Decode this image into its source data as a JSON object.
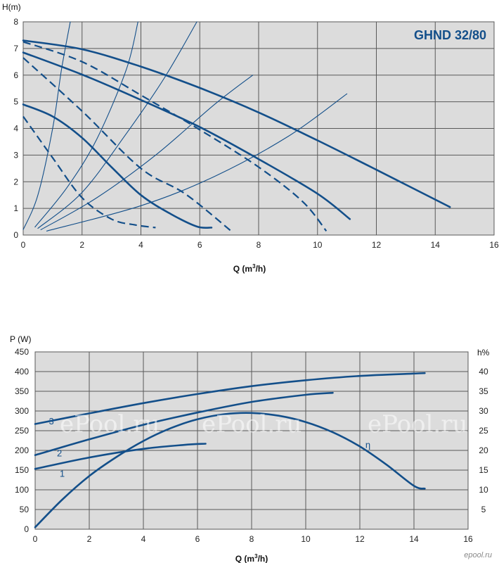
{
  "colors": {
    "curve": "#134f8a",
    "grid": "#595959",
    "plot_bg": "#dcdcdc",
    "title": "#134f8a"
  },
  "chart_data": [
    {
      "type": "line",
      "title": "GHND 32/80",
      "xlabel": "Q (m",
      "xlabel_sup": "3",
      "xlabel_tail": "/h)",
      "ylabel": "H(m)",
      "xlim": [
        0,
        16
      ],
      "ylim": [
        0,
        8
      ],
      "xticks": [
        0,
        2,
        4,
        6,
        8,
        10,
        12,
        14,
        16
      ],
      "yticks": [
        0,
        1,
        2,
        3,
        4,
        5,
        6,
        7,
        8
      ],
      "grid": true,
      "series": [
        {
          "style": "solid",
          "width": 2.6,
          "points": [
            [
              0,
              7.3
            ],
            [
              2,
              6.97
            ],
            [
              4,
              6.32
            ],
            [
              6,
              5.52
            ],
            [
              8,
              4.6
            ],
            [
              10,
              3.55
            ],
            [
              12,
              2.45
            ],
            [
              14.5,
              1.05
            ]
          ]
        },
        {
          "style": "solid",
          "width": 2.6,
          "points": [
            [
              0,
              6.85
            ],
            [
              2,
              6.02
            ],
            [
              4,
              5.07
            ],
            [
              6,
              4.05
            ],
            [
              8,
              2.85
            ],
            [
              10,
              1.55
            ],
            [
              11.1,
              0.6
            ]
          ]
        },
        {
          "style": "solid",
          "width": 2.6,
          "points": [
            [
              0,
              4.9
            ],
            [
              1,
              4.45
            ],
            [
              2,
              3.65
            ],
            [
              3,
              2.55
            ],
            [
              4,
              1.5
            ],
            [
              5,
              0.8
            ],
            [
              5.9,
              0.32
            ],
            [
              6.4,
              0.28
            ]
          ]
        },
        {
          "style": "dashed",
          "width": 2.2,
          "points": [
            [
              0,
              7.25
            ],
            [
              2,
              6.5
            ],
            [
              4,
              5.25
            ],
            [
              6,
              3.95
            ],
            [
              8,
              2.55
            ],
            [
              9.5,
              1.25
            ],
            [
              10.3,
              0.15
            ]
          ]
        },
        {
          "style": "dashed",
          "width": 2.2,
          "points": [
            [
              0,
              6.65
            ],
            [
              2,
              4.65
            ],
            [
              4,
              2.5
            ],
            [
              5.5,
              1.55
            ],
            [
              7.1,
              0.12
            ]
          ]
        },
        {
          "style": "dashed",
          "width": 2.2,
          "points": [
            [
              0,
              4.45
            ],
            [
              1,
              2.9
            ],
            [
              2,
              1.4
            ],
            [
              3,
              0.6
            ],
            [
              3.8,
              0.38
            ],
            [
              4.5,
              0.28
            ]
          ]
        },
        {
          "style": "thin",
          "width": 1.1,
          "points": [
            [
              0,
              0.2
            ],
            [
              0.5,
              1.5
            ],
            [
              1.0,
              4.0
            ],
            [
              1.3,
              6.2
            ],
            [
              1.6,
              8.0
            ]
          ]
        },
        {
          "style": "thin",
          "width": 1.1,
          "points": [
            [
              0.4,
              0.3
            ],
            [
              1.5,
              1.8
            ],
            [
              2.5,
              3.6
            ],
            [
              3.5,
              6.2
            ],
            [
              3.9,
              8.0
            ]
          ]
        },
        {
          "style": "thin",
          "width": 1.1,
          "points": [
            [
              0.5,
              0.25
            ],
            [
              2,
              1.6
            ],
            [
              3.5,
              3.8
            ],
            [
              4.8,
              5.9
            ],
            [
              5.9,
              8.0
            ]
          ]
        },
        {
          "style": "thin",
          "width": 1.1,
          "points": [
            [
              0.6,
              0.2
            ],
            [
              2.5,
              1.4
            ],
            [
              4.5,
              3.0
            ],
            [
              6.5,
              4.9
            ],
            [
              7.8,
              6.0
            ]
          ]
        },
        {
          "style": "thin",
          "width": 1.1,
          "points": [
            [
              0.8,
              0.15
            ],
            [
              4,
              1.1
            ],
            [
              6.5,
              2.2
            ],
            [
              9,
              3.7
            ],
            [
              11,
              5.3
            ]
          ]
        }
      ]
    },
    {
      "type": "line",
      "xlabel": "Q (m",
      "xlabel_sup": "3",
      "xlabel_tail": "/h)",
      "ylabel": "P (W)",
      "y2label": "h%",
      "xlim": [
        0,
        16
      ],
      "ylim": [
        0,
        450
      ],
      "y2lim": [
        0,
        45
      ],
      "xticks": [
        0,
        2,
        4,
        6,
        8,
        10,
        12,
        14,
        16
      ],
      "yticks": [
        0,
        50,
        100,
        150,
        200,
        250,
        300,
        350,
        400,
        450
      ],
      "y2ticks": [
        5,
        10,
        15,
        20,
        25,
        30,
        35,
        40
      ],
      "grid": true,
      "series": [
        {
          "name": "3",
          "points": [
            [
              0,
              267
            ],
            [
              2,
              294
            ],
            [
              4,
              320
            ],
            [
              6,
              343
            ],
            [
              8,
              363
            ],
            [
              10,
              378
            ],
            [
              12,
              389
            ],
            [
              14,
              395
            ],
            [
              14.4,
              396
            ]
          ]
        },
        {
          "name": "2",
          "points": [
            [
              0,
              188
            ],
            [
              2,
              228
            ],
            [
              4,
              265
            ],
            [
              6,
              296
            ],
            [
              8,
              323
            ],
            [
              10,
              341
            ],
            [
              11.0,
              346
            ]
          ]
        },
        {
          "name": "1",
          "points": [
            [
              0,
              153
            ],
            [
              2,
              182
            ],
            [
              4,
              204
            ],
            [
              5.5,
              214
            ],
            [
              6.3,
              217
            ]
          ]
        },
        {
          "name": "η",
          "points": [
            [
              0,
              5
            ],
            [
              1,
              75
            ],
            [
              2,
              135
            ],
            [
              3,
              183
            ],
            [
              4,
              224
            ],
            [
              5,
              256
            ],
            [
              6,
              279
            ],
            [
              7,
              292
            ],
            [
              8,
              295
            ],
            [
              9,
              288
            ],
            [
              10,
              272
            ],
            [
              11,
              246
            ],
            [
              12,
              210
            ],
            [
              13,
              163
            ],
            [
              14,
              110
            ],
            [
              14.4,
              103
            ]
          ]
        }
      ]
    }
  ],
  "watermark": "ePool.ru",
  "logo": "epool.ru"
}
